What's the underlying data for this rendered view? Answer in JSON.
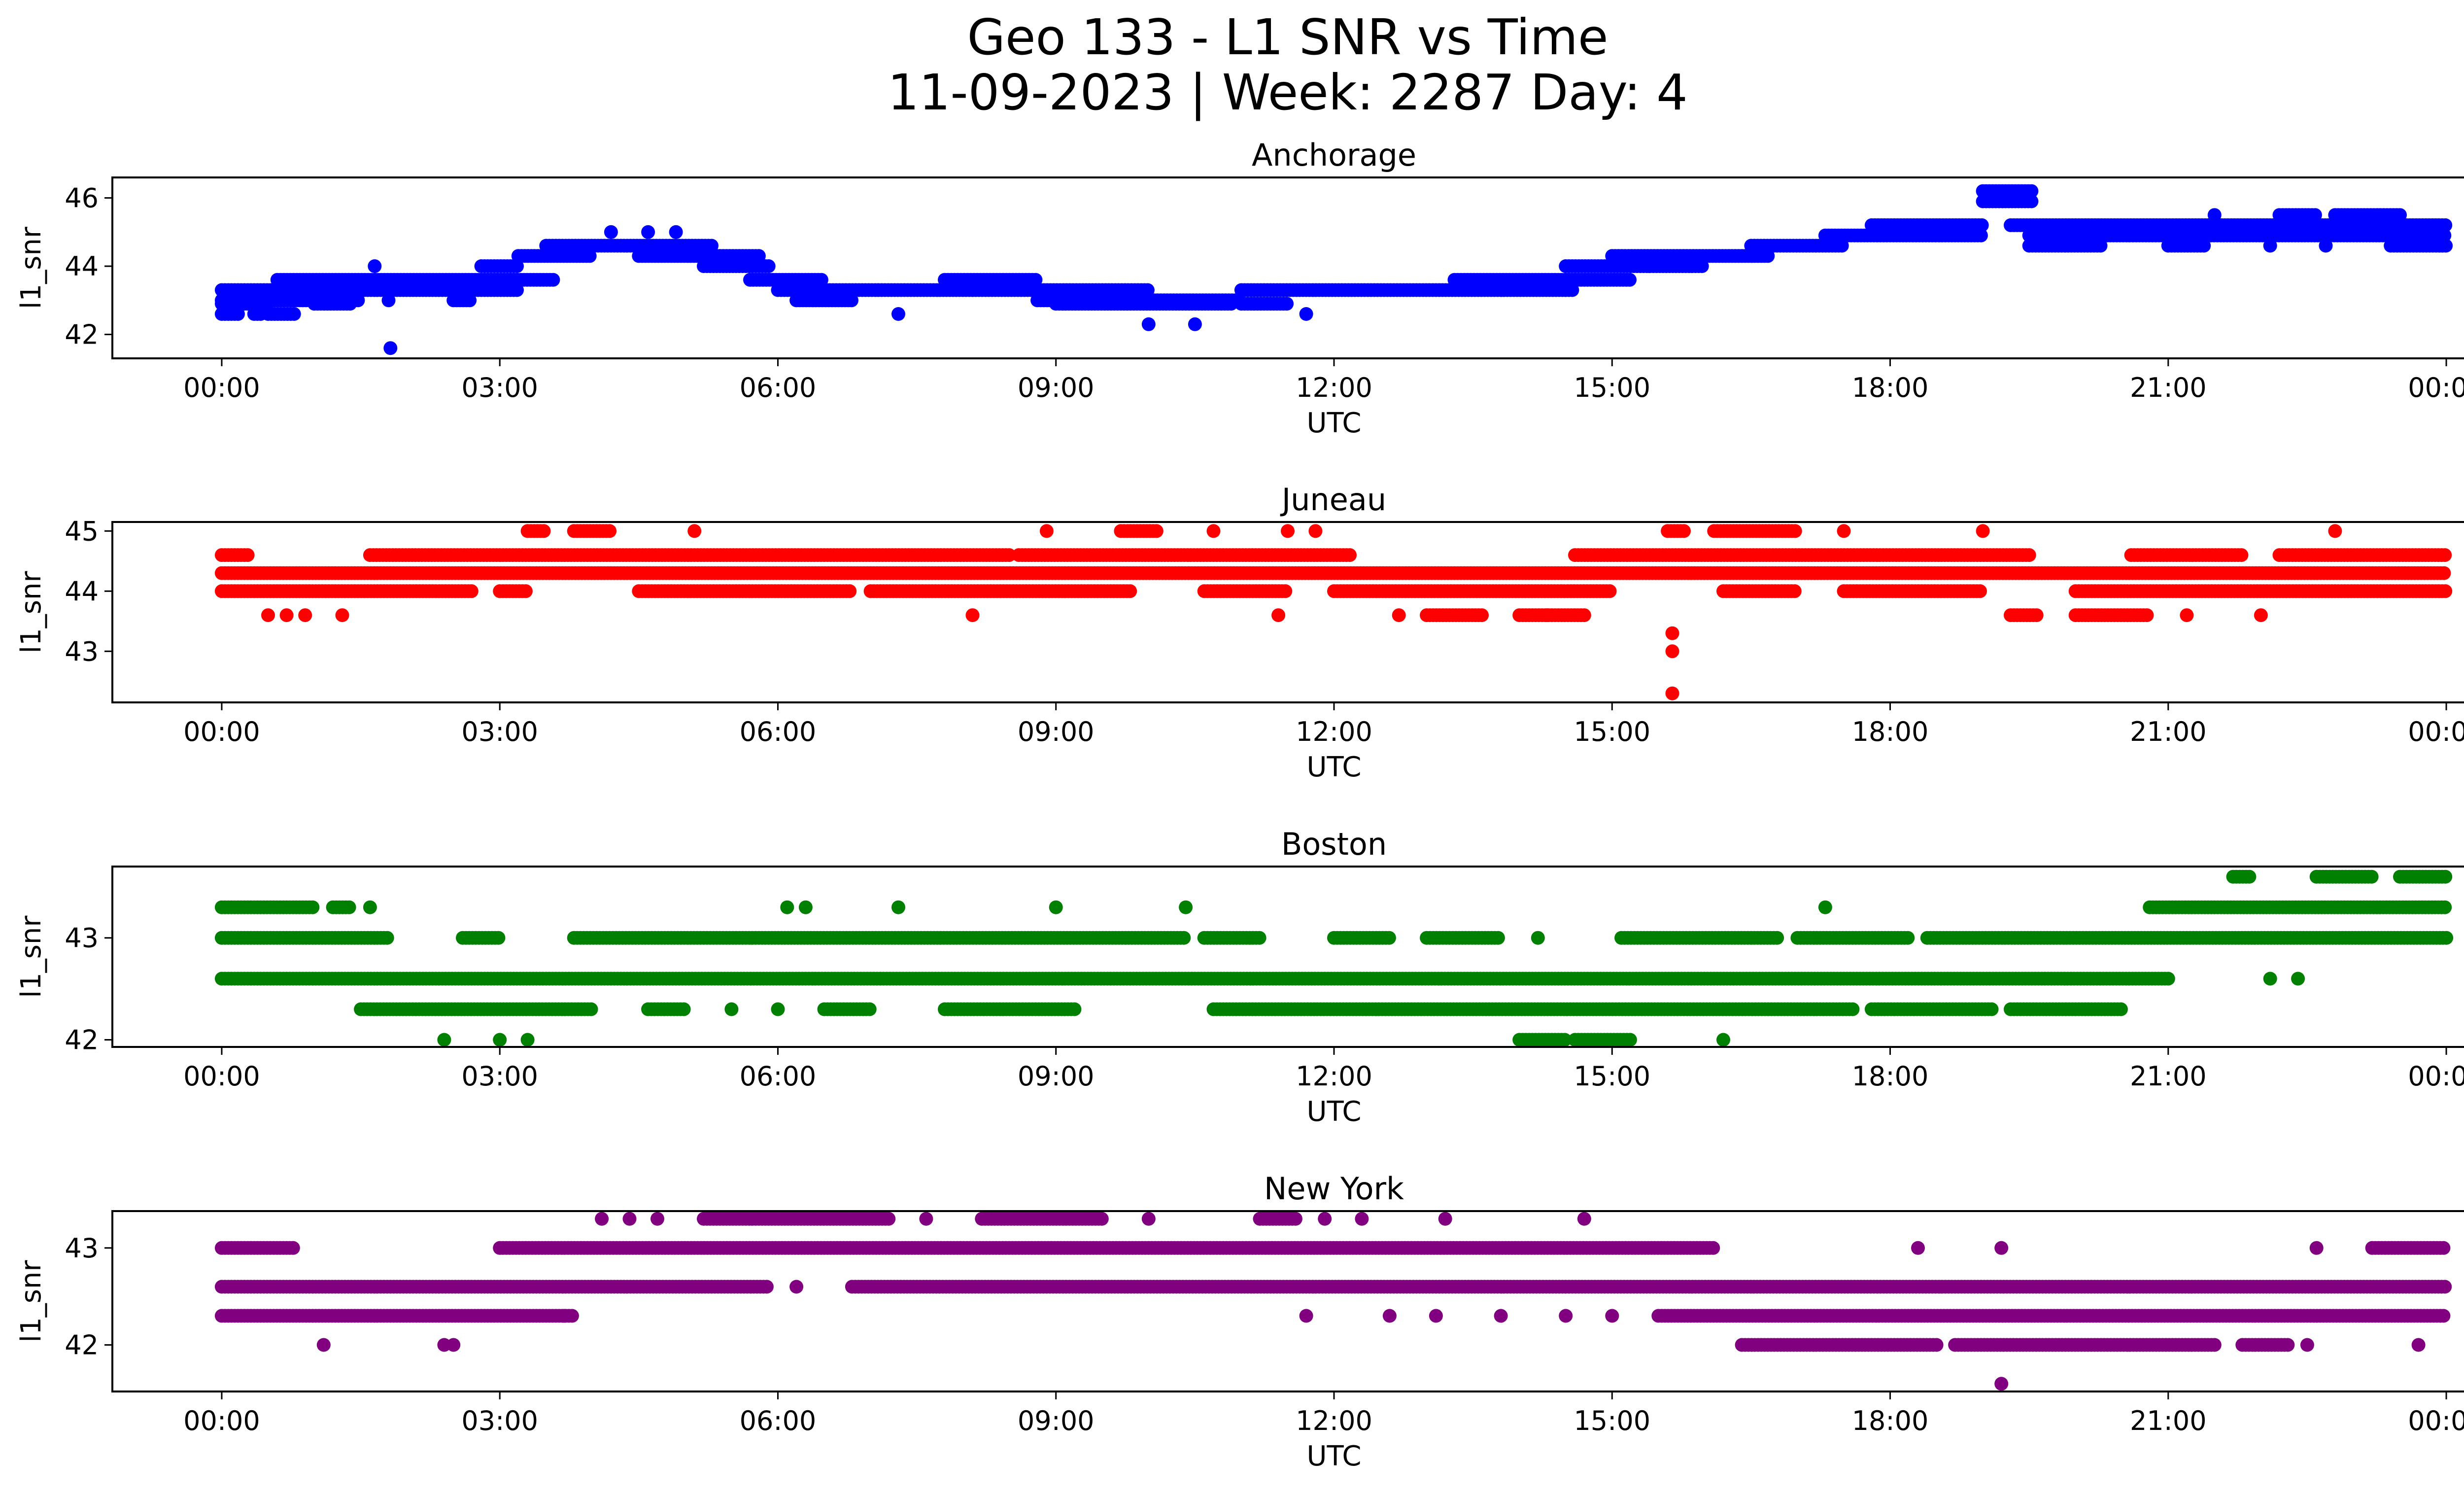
{
  "figure": {
    "title_line1": "Geo 133 - L1 SNR vs Time",
    "title_line2": "11-09-2023 | Week: 2287 Day: 4"
  },
  "chart_data": [
    {
      "type": "scatter",
      "title": "Anchorage",
      "xlabel": "UTC",
      "ylabel": "l1_snr",
      "color": "#0000ff",
      "x_ticks": [
        "00:00",
        "03:00",
        "06:00",
        "09:00",
        "12:00",
        "15:00",
        "18:00",
        "21:00",
        "00:00"
      ],
      "y_ticks": [
        42,
        44,
        46
      ],
      "xlim_hours": [
        -1.18,
        25.18
      ],
      "ylim": [
        41.3,
        46.6
      ],
      "series": [
        {
          "level": 42.6,
          "segments": [
            [
              0.0,
              0.2
            ],
            [
              0.35,
              0.45
            ],
            [
              0.5,
              0.8
            ]
          ]
        },
        {
          "level": 42.9,
          "segments": [
            [
              0.0,
              0.5
            ],
            [
              1.0,
              1.4
            ],
            [
              9.0,
              10.9
            ],
            [
              11.0,
              11.5
            ]
          ]
        },
        {
          "level": 43.0,
          "segments": [
            [
              0.0,
              1.5
            ],
            [
              2.5,
              2.7
            ],
            [
              6.2,
              6.8
            ],
            [
              8.8,
              11.0
            ]
          ]
        },
        {
          "level": 43.3,
          "segments": [
            [
              0.0,
              3.2
            ],
            [
              6.0,
              10.0
            ],
            [
              11.0,
              14.6
            ]
          ]
        },
        {
          "level": 43.6,
          "segments": [
            [
              0.6,
              3.6
            ],
            [
              5.7,
              6.5
            ],
            [
              7.8,
              8.8
            ],
            [
              13.3,
              15.2
            ]
          ]
        },
        {
          "level": 44.0,
          "segments": [
            [
              2.8,
              3.2
            ],
            [
              5.2,
              5.9
            ],
            [
              14.5,
              16.0
            ]
          ]
        },
        {
          "level": 44.3,
          "segments": [
            [
              3.2,
              4.0
            ],
            [
              4.5,
              5.8
            ],
            [
              15.0,
              16.7
            ]
          ]
        },
        {
          "level": 44.6,
          "segments": [
            [
              3.5,
              5.3
            ],
            [
              16.5,
              17.5
            ]
          ]
        },
        {
          "level": 44.9,
          "segments": [
            [
              17.3,
              19.0
            ],
            [
              19.5,
              24.0
            ]
          ]
        },
        {
          "level": 45.2,
          "segments": [
            [
              17.8,
              19.0
            ],
            [
              19.3,
              24.0
            ]
          ]
        },
        {
          "level": 45.5,
          "segments": [
            [
              22.2,
              22.6
            ],
            [
              22.8,
              23.5
            ]
          ]
        },
        {
          "level": 45.9,
          "segments": [
            [
              19.0,
              19.55
            ]
          ]
        },
        {
          "level": 46.2,
          "segments": [
            [
              19.0,
              19.55
            ]
          ]
        },
        {
          "level": 44.6,
          "segments": [
            [
              19.5,
              20.3
            ],
            [
              21.0,
              21.4
            ],
            [
              23.4,
              24.0
            ]
          ]
        }
      ],
      "points": [
        [
          1.65,
          44.0
        ],
        [
          1.8,
          43.0
        ],
        [
          1.82,
          41.6
        ],
        [
          8.1,
          43.3
        ],
        [
          10.0,
          42.3
        ],
        [
          10.5,
          42.3
        ],
        [
          11.7,
          42.6
        ],
        [
          7.3,
          42.6
        ],
        [
          4.2,
          45.0
        ],
        [
          4.6,
          45.0
        ],
        [
          4.9,
          45.0
        ],
        [
          15.4,
          44.0
        ],
        [
          21.5,
          45.5
        ],
        [
          22.1,
          44.6
        ],
        [
          22.7,
          44.6
        ]
      ]
    },
    {
      "type": "scatter",
      "title": "Juneau",
      "xlabel": "UTC",
      "ylabel": "l1_snr",
      "color": "#ff0000",
      "x_ticks": [
        "00:00",
        "03:00",
        "06:00",
        "09:00",
        "12:00",
        "15:00",
        "18:00",
        "21:00",
        "00:00"
      ],
      "y_ticks": [
        43,
        44,
        45
      ],
      "xlim_hours": [
        -1.18,
        25.18
      ],
      "ylim": [
        42.15,
        45.15
      ],
      "series": [
        {
          "level": 44.3,
          "segments": [
            [
              0.0,
              24.0
            ]
          ]
        },
        {
          "level": 44.0,
          "segments": [
            [
              0.0,
              2.7
            ],
            [
              3.0,
              3.3
            ],
            [
              4.5,
              6.8
            ],
            [
              7.0,
              9.8
            ],
            [
              10.6,
              11.5
            ],
            [
              12.0,
              15.0
            ],
            [
              16.2,
              17.0
            ],
            [
              17.5,
              19.0
            ],
            [
              20.0,
              24.0
            ]
          ]
        },
        {
          "level": 44.6,
          "segments": [
            [
              0.0,
              0.3
            ],
            [
              1.6,
              8.5
            ],
            [
              8.6,
              12.2
            ],
            [
              14.6,
              19.5
            ],
            [
              20.6,
              21.8
            ],
            [
              22.2,
              24.0
            ]
          ]
        },
        {
          "level": 43.6,
          "segments": [
            [
              13.0,
              13.6
            ],
            [
              14.0,
              14.7
            ],
            [
              19.3,
              19.6
            ],
            [
              20.0,
              20.8
            ]
          ]
        },
        {
          "level": 45.0,
          "segments": [
            [
              3.3,
              3.5
            ],
            [
              3.8,
              4.2
            ],
            [
              9.7,
              10.1
            ],
            [
              15.6,
              15.8
            ],
            [
              16.1,
              17.0
            ]
          ]
        }
      ],
      "points": [
        [
          0.5,
          43.6
        ],
        [
          0.7,
          43.6
        ],
        [
          0.9,
          43.6
        ],
        [
          1.3,
          43.6
        ],
        [
          8.1,
          43.6
        ],
        [
          11.4,
          43.6
        ],
        [
          12.7,
          43.6
        ],
        [
          14.3,
          43.6
        ],
        [
          21.2,
          43.6
        ],
        [
          22.0,
          43.6
        ],
        [
          15.65,
          43.3
        ],
        [
          15.65,
          43.0
        ],
        [
          15.65,
          42.3
        ],
        [
          5.1,
          45.0
        ],
        [
          8.9,
          45.0
        ],
        [
          10.7,
          45.0
        ],
        [
          11.5,
          45.0
        ],
        [
          11.8,
          45.0
        ],
        [
          17.5,
          45.0
        ],
        [
          19.0,
          45.0
        ],
        [
          22.8,
          45.0
        ]
      ]
    },
    {
      "type": "scatter",
      "title": "Boston",
      "xlabel": "UTC",
      "ylabel": "l1_snr",
      "color": "#008000",
      "x_ticks": [
        "00:00",
        "03:00",
        "06:00",
        "09:00",
        "12:00",
        "15:00",
        "18:00",
        "21:00",
        "00:00"
      ],
      "y_ticks": [
        42,
        43
      ],
      "xlim_hours": [
        -1.18,
        25.18
      ],
      "ylim": [
        41.93,
        43.7
      ],
      "series": [
        {
          "level": 42.6,
          "segments": [
            [
              0.0,
              21.0
            ]
          ]
        },
        {
          "level": 43.0,
          "segments": [
            [
              0.0,
              1.8
            ],
            [
              2.6,
              3.0
            ],
            [
              3.8,
              10.4
            ],
            [
              10.6,
              11.2
            ],
            [
              12.0,
              12.6
            ],
            [
              13.0,
              13.8
            ],
            [
              15.1,
              16.8
            ],
            [
              17.0,
              18.2
            ],
            [
              18.4,
              24.0
            ]
          ]
        },
        {
          "level": 42.3,
          "segments": [
            [
              1.5,
              4.0
            ],
            [
              4.6,
              5.0
            ],
            [
              6.5,
              7.0
            ],
            [
              7.8,
              9.2
            ],
            [
              10.7,
              17.6
            ],
            [
              17.8,
              19.1
            ],
            [
              19.3,
              20.5
            ]
          ]
        },
        {
          "level": 43.3,
          "segments": [
            [
              0.0,
              1.0
            ],
            [
              1.2,
              1.4
            ],
            [
              20.8,
              24.0
            ]
          ]
        },
        {
          "level": 43.6,
          "segments": [
            [
              21.7,
              21.9
            ],
            [
              22.6,
              23.2
            ],
            [
              23.5,
              24.0
            ]
          ]
        },
        {
          "level": 42.0,
          "segments": [
            [
              14.0,
              14.5
            ],
            [
              14.6,
              15.2
            ]
          ]
        }
      ],
      "points": [
        [
          1.6,
          43.3
        ],
        [
          2.4,
          42.0
        ],
        [
          3.0,
          42.0
        ],
        [
          3.3,
          42.0
        ],
        [
          6.1,
          43.3
        ],
        [
          6.3,
          43.3
        ],
        [
          7.3,
          43.3
        ],
        [
          9.0,
          43.3
        ],
        [
          10.4,
          43.3
        ],
        [
          17.3,
          43.3
        ],
        [
          14.2,
          43.0
        ],
        [
          16.2,
          42.0
        ],
        [
          22.1,
          42.6
        ],
        [
          22.4,
          42.6
        ],
        [
          5.5,
          42.3
        ],
        [
          6.0,
          42.3
        ]
      ]
    },
    {
      "type": "scatter",
      "title": "New York",
      "xlabel": "UTC",
      "ylabel": "l1_snr",
      "color": "#800080",
      "x_ticks": [
        "00:00",
        "03:00",
        "06:00",
        "09:00",
        "12:00",
        "15:00",
        "18:00",
        "21:00",
        "00:00"
      ],
      "y_ticks": [
        42,
        43
      ],
      "xlim_hours": [
        -1.18,
        25.18
      ],
      "ylim": [
        41.52,
        43.38
      ],
      "series": [
        {
          "level": 42.6,
          "segments": [
            [
              0.0,
              5.9
            ],
            [
              6.8,
              24.0
            ]
          ]
        },
        {
          "level": 43.0,
          "segments": [
            [
              0.0,
              0.8
            ],
            [
              3.0,
              16.1
            ],
            [
              23.2,
              24.0
            ]
          ]
        },
        {
          "level": 42.3,
          "segments": [
            [
              0.0,
              3.8
            ],
            [
              15.5,
              24.0
            ]
          ]
        },
        {
          "level": 43.3,
          "segments": [
            [
              5.2,
              7.2
            ],
            [
              8.2,
              9.5
            ],
            [
              11.2,
              11.6
            ]
          ]
        },
        {
          "level": 42.0,
          "segments": [
            [
              16.4,
              18.5
            ],
            [
              18.7,
              21.5
            ],
            [
              21.8,
              22.3
            ]
          ]
        }
      ],
      "points": [
        [
          1.1,
          42.0
        ],
        [
          2.4,
          42.0
        ],
        [
          2.5,
          42.0
        ],
        [
          4.1,
          43.3
        ],
        [
          4.4,
          43.3
        ],
        [
          4.7,
          43.3
        ],
        [
          7.6,
          43.3
        ],
        [
          10.0,
          43.3
        ],
        [
          11.9,
          43.3
        ],
        [
          12.3,
          43.3
        ],
        [
          13.2,
          43.3
        ],
        [
          14.7,
          43.3
        ],
        [
          11.7,
          42.3
        ],
        [
          12.6,
          42.3
        ],
        [
          13.1,
          42.3
        ],
        [
          13.8,
          42.3
        ],
        [
          14.5,
          42.3
        ],
        [
          15.0,
          42.3
        ],
        [
          18.3,
          43.0
        ],
        [
          19.2,
          43.0
        ],
        [
          22.6,
          43.0
        ],
        [
          19.2,
          41.6
        ],
        [
          22.5,
          42.0
        ],
        [
          23.7,
          42.0
        ],
        [
          6.2,
          42.6
        ],
        [
          3.7,
          42.3
        ]
      ]
    }
  ]
}
